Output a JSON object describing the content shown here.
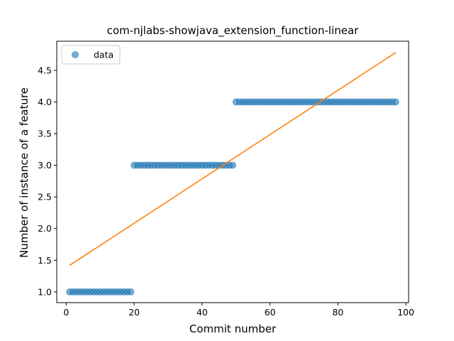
{
  "chart_data": {
    "type": "scatter",
    "title": "com-njlabs-showjava_extension_function-linear",
    "xlabel": "Commit number",
    "ylabel": "Number of instance of a feature",
    "xlim": [
      -2.8,
      100.8
    ],
    "ylim": [
      0.83,
      4.96
    ],
    "xticks": [
      0,
      20,
      40,
      60,
      80,
      100
    ],
    "xtick_labels": [
      "0",
      "20",
      "40",
      "60",
      "80",
      "100"
    ],
    "yticks": [
      1.0,
      1.5,
      2.0,
      2.5,
      3.0,
      3.5,
      4.0,
      4.5
    ],
    "ytick_labels": [
      "1.0",
      "1.5",
      "2.0",
      "2.5",
      "3.0",
      "3.5",
      "4.0",
      "4.5"
    ],
    "grid": false,
    "legend": {
      "placement": "top-left",
      "entries": [
        "data"
      ]
    },
    "colors": {
      "data": "#1f77b4",
      "fit": "#ff7f0e"
    },
    "series": [
      {
        "name": "data",
        "kind": "scatter",
        "segments": [
          {
            "x_start": 1,
            "x_end": 19,
            "y": 1
          },
          {
            "x_start": 20,
            "x_end": 49,
            "y": 3
          },
          {
            "x_start": 50,
            "x_end": 97,
            "y": 4
          }
        ]
      },
      {
        "kind": "line",
        "x": [
          1,
          97
        ],
        "y": [
          1.42,
          4.78
        ]
      }
    ]
  }
}
